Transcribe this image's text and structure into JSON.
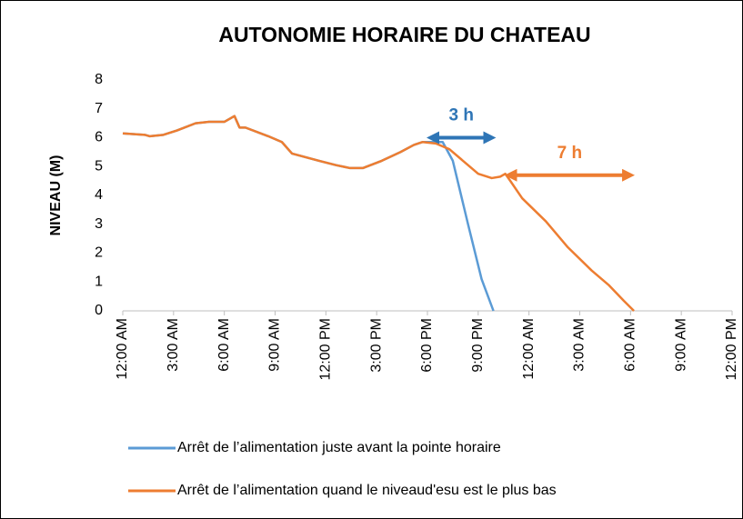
{
  "chart_data": {
    "type": "line",
    "title": "AUTONOMIE HORAIRE DU CHATEAU",
    "ylabel": "NIVEAU (M)",
    "xlim": [
      0,
      36
    ],
    "ylim": [
      0,
      8
    ],
    "yticks": [
      0,
      1,
      2,
      3,
      4,
      5,
      6,
      7,
      8
    ],
    "xticks": [
      {
        "value": 0,
        "label": "12:00 AM"
      },
      {
        "value": 3,
        "label": "3:00 AM"
      },
      {
        "value": 6,
        "label": "6:00 AM"
      },
      {
        "value": 9,
        "label": "9:00 AM"
      },
      {
        "value": 12,
        "label": "12:00 PM"
      },
      {
        "value": 15,
        "label": "3:00 PM"
      },
      {
        "value": 18,
        "label": "6:00 PM"
      },
      {
        "value": 21,
        "label": "9:00 PM"
      },
      {
        "value": 24,
        "label": "12:00 AM"
      },
      {
        "value": 27,
        "label": "3:00 AM"
      },
      {
        "value": 30,
        "label": "6:00 AM"
      },
      {
        "value": 33,
        "label": "9:00 AM"
      },
      {
        "value": 36,
        "label": "12:00 PM"
      }
    ],
    "grid": false,
    "legend": "bottom",
    "series": [
      {
        "name": "Arrêt de l’alimentation juste avant la pointe horaire",
        "color": "#5b9bd5",
        "x": [
          0,
          1.3,
          1.6,
          2.4,
          3.2,
          4.3,
          5.1,
          6.0,
          6.6,
          6.9,
          7.25,
          8.6,
          9.4,
          10,
          11.6,
          12.6,
          13.4,
          14.2,
          15.3,
          16.4,
          17.2,
          17.7,
          18.9,
          19.5,
          20.4,
          21.2,
          21.9
        ],
        "values": [
          6.15,
          6.1,
          6.05,
          6.1,
          6.25,
          6.5,
          6.55,
          6.55,
          6.75,
          6.35,
          6.35,
          6.05,
          5.85,
          5.45,
          5.2,
          5.05,
          4.95,
          4.95,
          5.2,
          5.5,
          5.75,
          5.85,
          5.85,
          5.2,
          3,
          1.1,
          0
        ]
      },
      {
        "name": "Arrêt de l’alimentation quand le niveaud'esu est le plus bas",
        "color": "#ed7d31",
        "x": [
          0,
          1.3,
          1.6,
          2.4,
          3.2,
          4.3,
          5.1,
          6.0,
          6.6,
          6.9,
          7.25,
          8.6,
          9.4,
          10,
          11.6,
          12.6,
          13.4,
          14.2,
          15.3,
          16.4,
          17.2,
          17.7,
          18.5,
          19.3,
          20.1,
          21,
          21.8,
          22.3,
          22.6,
          22.9,
          23.6,
          25,
          26.3,
          27.7,
          28.7,
          29.6,
          30.2
        ],
        "values": [
          6.15,
          6.1,
          6.05,
          6.1,
          6.25,
          6.5,
          6.55,
          6.55,
          6.75,
          6.35,
          6.35,
          6.05,
          5.85,
          5.45,
          5.2,
          5.05,
          4.95,
          4.95,
          5.2,
          5.5,
          5.75,
          5.85,
          5.8,
          5.6,
          5.2,
          4.75,
          4.6,
          4.65,
          4.75,
          4.5,
          3.9,
          3.1,
          2.2,
          1.4,
          0.9,
          0.35,
          0
        ]
      }
    ],
    "annotations": [
      {
        "text": "3 h",
        "color": "#2e75b6",
        "x": [
          18,
          22
        ],
        "y": 6.0
      },
      {
        "text": "7 h",
        "color": "#ed7d31",
        "x": [
          22.6,
          30.2
        ],
        "y": 4.7
      }
    ]
  }
}
